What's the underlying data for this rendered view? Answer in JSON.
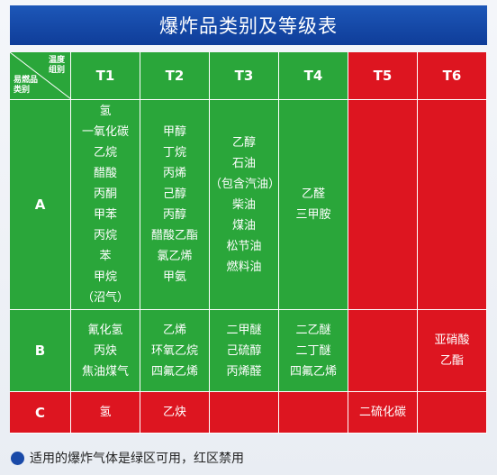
{
  "title": "爆炸品类别及等级表",
  "corner": {
    "temp_label_1": "温度",
    "temp_label_2": "组别",
    "class_label_1": "易燃品",
    "class_label_2": "类别"
  },
  "headers": [
    "T1",
    "T2",
    "T3",
    "T4",
    "T5",
    "T6"
  ],
  "rows": [
    {
      "label": "A",
      "cells": [
        [
          "氢",
          "一氧化碳",
          "乙烷",
          "醋酸",
          "丙酮",
          "甲苯",
          "丙烷",
          "苯",
          "甲烷",
          "（沼气）"
        ],
        [
          "甲醇",
          "丁烷",
          "丙烯",
          "己醇",
          "丙醇",
          "醋酸乙酯",
          "氯乙烯",
          "甲氨"
        ],
        [
          "乙醇",
          "石油",
          "（包含汽油）",
          "柴油",
          "煤油",
          "松节油",
          "燃料油"
        ],
        [
          "乙醛",
          "三甲胺"
        ],
        [],
        []
      ]
    },
    {
      "label": "B",
      "cells": [
        [
          "氰化氢",
          "丙炔",
          "焦油煤气"
        ],
        [
          "乙烯",
          "环氧乙烷",
          "四氟乙烯"
        ],
        [
          "二甲醚",
          "己硫醇",
          "丙烯醛"
        ],
        [
          "二乙醚",
          "二丁醚",
          "四氟乙烯"
        ],
        [],
        [
          "亚硝酸",
          "乙酯"
        ]
      ]
    },
    {
      "label": "C",
      "cells": [
        [
          "氢"
        ],
        [
          "乙炔"
        ],
        [],
        [],
        [
          "二硫化碳"
        ],
        []
      ]
    }
  ],
  "legend": "适用的爆炸气体是绿区可用，红区禁用",
  "colors": {
    "green": "#2aa63a",
    "red": "#dd1520",
    "title_blue": "#1d57b8"
  }
}
